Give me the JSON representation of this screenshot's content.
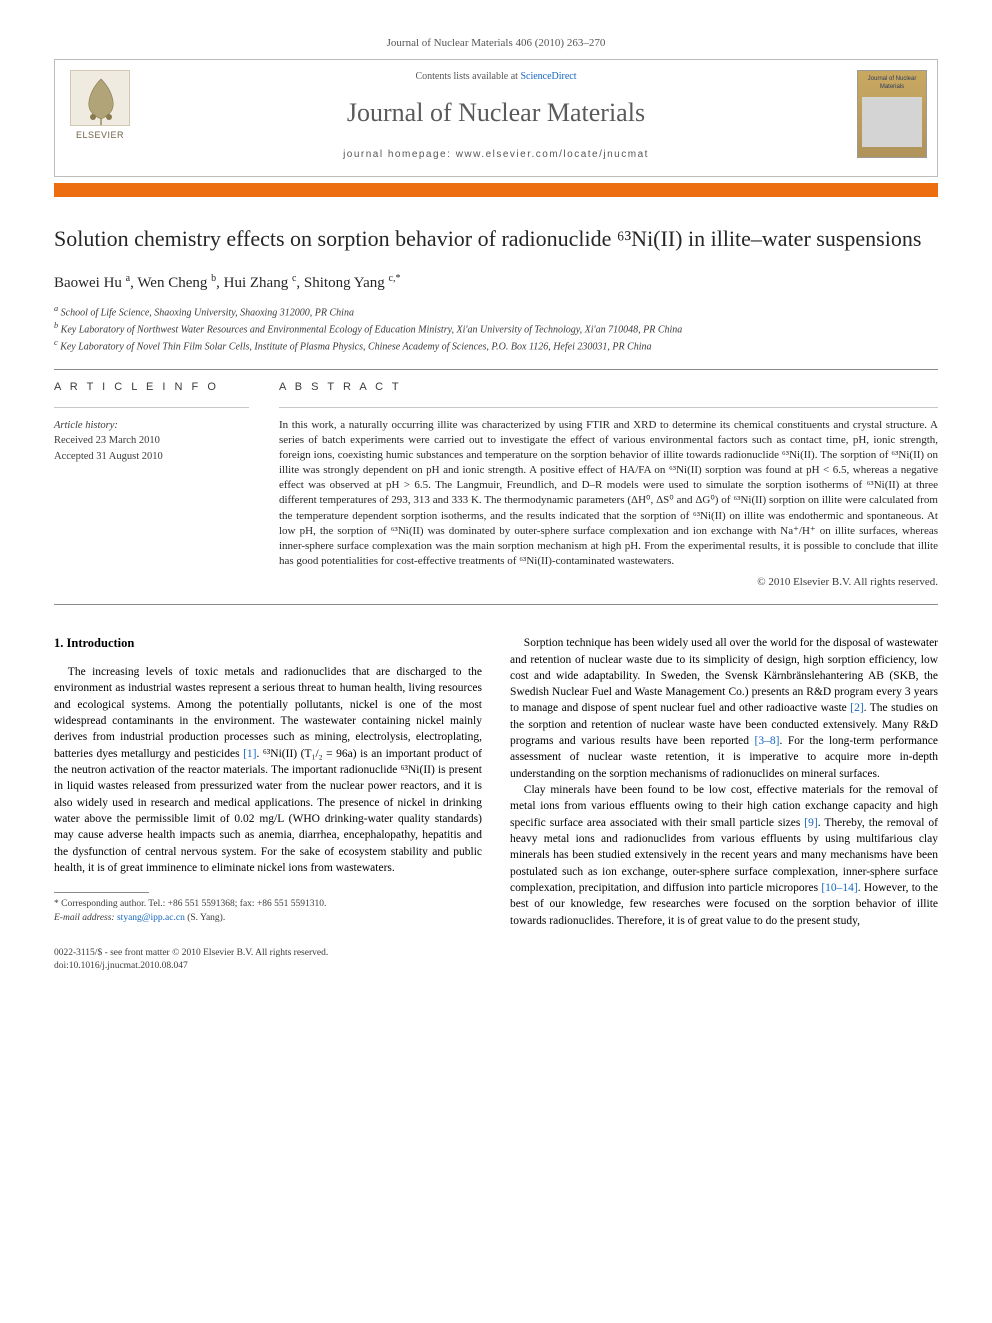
{
  "journal_ref": "Journal of Nuclear Materials 406 (2010) 263–270",
  "header": {
    "contents_prefix": "Contents lists available at ",
    "contents_link": "ScienceDirect",
    "journal_title": "Journal of Nuclear Materials",
    "homepage_prefix": "journal homepage: ",
    "homepage_url": "www.elsevier.com/locate/jnucmat",
    "publisher": "ELSEVIER",
    "cover_title": "Journal of Nuclear Materials"
  },
  "article": {
    "title": "Solution chemistry effects on sorption behavior of radionuclide ⁶³Ni(II) in illite–water suspensions",
    "authors_html": "Baowei Hu <sup>a</sup>, Wen Cheng <sup>b</sup>, Hui Zhang <sup>c</sup>, Shitong Yang <sup>c,*</sup>",
    "affiliations": {
      "a": "School of Life Science, Shaoxing University, Shaoxing 312000, PR China",
      "b": "Key Laboratory of Northwest Water Resources and Environmental Ecology of Education Ministry, Xi'an University of Technology, Xi'an 710048, PR China",
      "c": "Key Laboratory of Novel Thin Film Solar Cells, Institute of Plasma Physics, Chinese Academy of Sciences, P.O. Box 1126, Hefei 230031, PR China"
    }
  },
  "info": {
    "section_label": "A R T I C L E   I N F O",
    "history_label": "Article history:",
    "received": "Received 23 March 2010",
    "accepted": "Accepted 31 August 2010"
  },
  "abstract": {
    "section_label": "A B S T R A C T",
    "text": "In this work, a naturally occurring illite was characterized by using FTIR and XRD to determine its chemical constituents and crystal structure. A series of batch experiments were carried out to investigate the effect of various environmental factors such as contact time, pH, ionic strength, foreign ions, coexisting humic substances and temperature on the sorption behavior of illite towards radionuclide ⁶³Ni(II). The sorption of ⁶³Ni(II) on illite was strongly dependent on pH and ionic strength. A positive effect of HA/FA on ⁶³Ni(II) sorption was found at pH < 6.5, whereas a negative effect was observed at pH > 6.5. The Langmuir, Freundlich, and D–R models were used to simulate the sorption isotherms of ⁶³Ni(II) at three different temperatures of 293, 313 and 333 K. The thermodynamic parameters (ΔH⁰, ΔS⁰ and ΔG⁰) of ⁶³Ni(II) sorption on illite were calculated from the temperature dependent sorption isotherms, and the results indicated that the sorption of ⁶³Ni(II) on illite was endothermic and spontaneous. At low pH, the sorption of ⁶³Ni(II) was dominated by outer-sphere surface complexation and ion exchange with Na⁺/H⁺ on illite surfaces, whereas inner-sphere surface complexation was the main sorption mechanism at high pH. From the experimental results, it is possible to conclude that illite has good potentialities for cost-effective treatments of ⁶³Ni(II)-contaminated wastewaters.",
    "copyright": "© 2010 Elsevier B.V. All rights reserved."
  },
  "body": {
    "heading": "1. Introduction",
    "left_p1": "The increasing levels of toxic metals and radionuclides that are discharged to the environment as industrial wastes represent a serious threat to human health, living resources and ecological systems. Among the potentially pollutants, nickel is one of the most widespread contaminants in the environment. The wastewater containing nickel mainly derives from industrial production processes such as mining, electrolysis, electroplating, batteries dyes metallurgy and pesticides [1]. ⁶³Ni(II) (T₁/₂ = 96a) is an important product of the neutron activation of the reactor materials. The important radionuclide ⁶³Ni(II) is present in liquid wastes released from pressurized water from the nuclear power reactors, and it is also widely used in research and medical applications. The presence of nickel in drinking water above the permissible limit of 0.02 mg/L (WHO drinking-water quality standards) may cause adverse health impacts such as anemia, diarrhea, encephalopathy, hepatitis and the dysfunction of central nervous system. For the sake of ecosystem stability and public health, it is of great imminence to eliminate nickel ions from wastewaters.",
    "right_p1": "Sorption technique has been widely used all over the world for the disposal of wastewater and retention of nuclear waste due to its simplicity of design, high sorption efficiency, low cost and wide adaptability. In Sweden, the Svensk Kärnbränslehantering AB (SKB, the Swedish Nuclear Fuel and Waste Management Co.) presents an R&D program every 3 years to manage and dispose of spent nuclear fuel and other radioactive waste [2]. The studies on the sorption and retention of nuclear waste have been conducted extensively. Many R&D programs and various results have been reported [3–8]. For the long-term performance assessment of nuclear waste retention, it is imperative to acquire more in-depth understanding on the sorption mechanisms of radionuclides on mineral surfaces.",
    "right_p2": "Clay minerals have been found to be low cost, effective materials for the removal of metal ions from various effluents owing to their high cation exchange capacity and high specific surface area associated with their small particle sizes [9]. Thereby, the removal of heavy metal ions and radionuclides from various effluents by using multifarious clay minerals has been studied extensively in the recent years and many mechanisms have been postulated such as ion exchange, outer-sphere surface complexation, inner-sphere surface complexation, precipitation, and diffusion into particle micropores [10–14]. However, to the best of our knowledge, few researches were focused on the sorption behavior of illite towards radionuclides. Therefore, it is of great value to do the present study,"
  },
  "footnote": {
    "corr": "* Corresponding author. Tel.: +86 551 5591368; fax: +86 551 5591310.",
    "email_label": "E-mail address: ",
    "email": "styang@ipp.ac.cn",
    "email_suffix": " (S. Yang)."
  },
  "footer": {
    "left1": "0022-3115/$ - see front matter © 2010 Elsevier B.V. All rights reserved.",
    "left2": "doi:10.1016/j.jnucmat.2010.08.047"
  },
  "colors": {
    "orange_bar": "#ec6e0e",
    "link": "#1566c0",
    "text": "#262626",
    "muted": "#555555",
    "border": "#bcbcbc"
  }
}
